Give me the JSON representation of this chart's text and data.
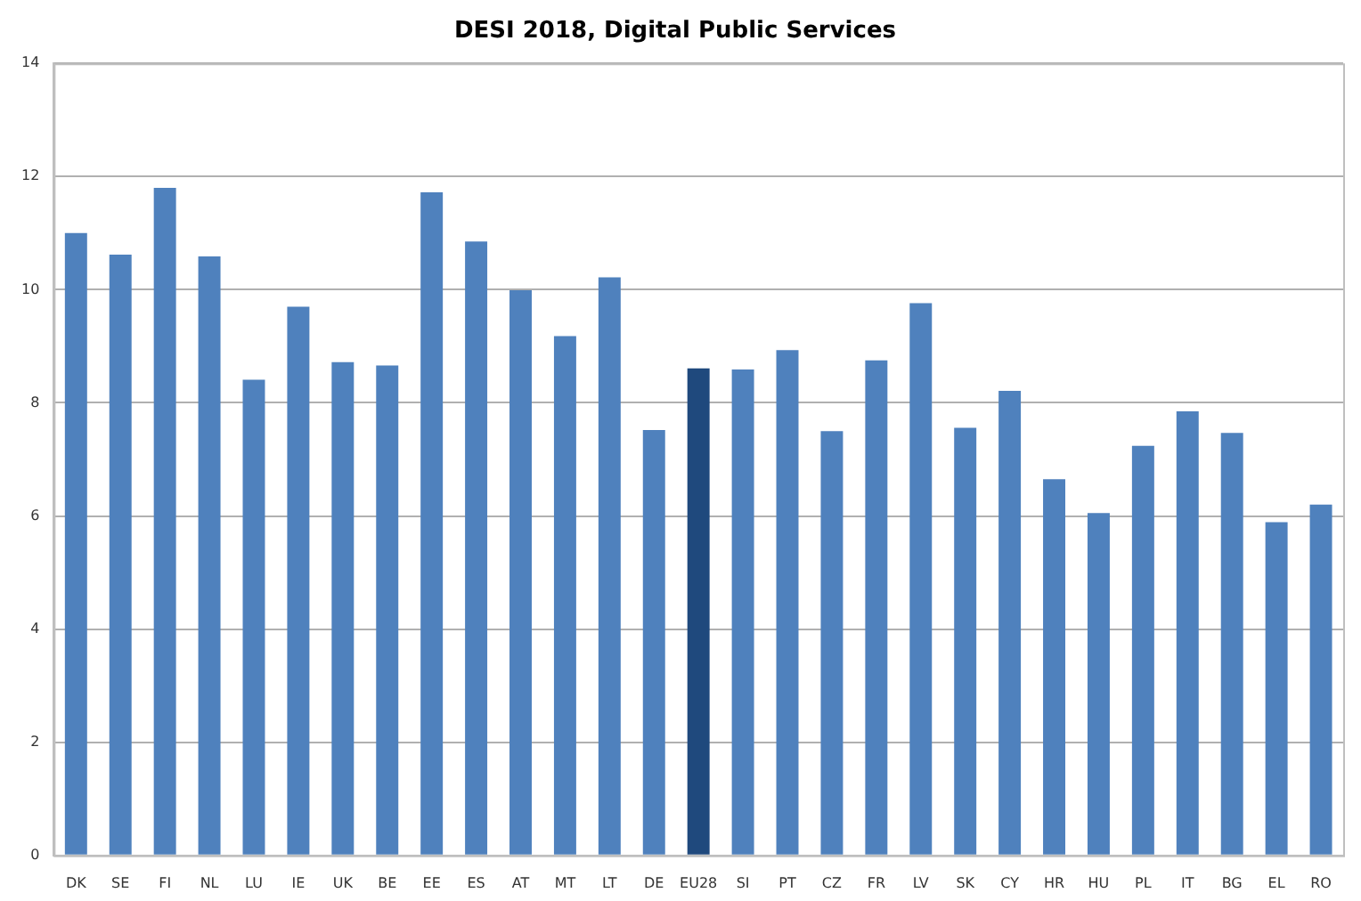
{
  "chart_data": {
    "type": "bar",
    "title": "DESI 2018, Digital Public Services",
    "categories": [
      "DK",
      "SE",
      "FI",
      "NL",
      "LU",
      "IE",
      "UK",
      "BE",
      "EE",
      "ES",
      "AT",
      "MT",
      "LT",
      "DE",
      "EU28",
      "SI",
      "PT",
      "CZ",
      "FR",
      "LV",
      "SK",
      "CY",
      "HR",
      "HU",
      "PL",
      "IT",
      "BG",
      "EL",
      "RO"
    ],
    "values": [
      11.0,
      10.62,
      11.8,
      10.59,
      8.41,
      9.7,
      8.72,
      8.66,
      11.72,
      10.85,
      9.99,
      9.18,
      10.22,
      7.52,
      8.61,
      8.59,
      8.93,
      7.5,
      8.75,
      9.76,
      7.56,
      8.21,
      6.65,
      6.05,
      7.24,
      7.85,
      7.47,
      5.89,
      6.2
    ],
    "colors": [
      "#4f81bd",
      "#4f81bd",
      "#4f81bd",
      "#4f81bd",
      "#4f81bd",
      "#4f81bd",
      "#4f81bd",
      "#4f81bd",
      "#4f81bd",
      "#4f81bd",
      "#4f81bd",
      "#4f81bd",
      "#4f81bd",
      "#4f81bd",
      "#1f497d",
      "#4f81bd",
      "#4f81bd",
      "#4f81bd",
      "#4f81bd",
      "#4f81bd",
      "#4f81bd",
      "#4f81bd",
      "#4f81bd",
      "#4f81bd",
      "#4f81bd",
      "#4f81bd",
      "#4f81bd",
      "#4f81bd",
      "#4f81bd"
    ],
    "ylim": [
      0,
      14
    ],
    "yticks": [
      0,
      2,
      4,
      6,
      8,
      10,
      12,
      14
    ],
    "grid": "y",
    "legend": false
  }
}
